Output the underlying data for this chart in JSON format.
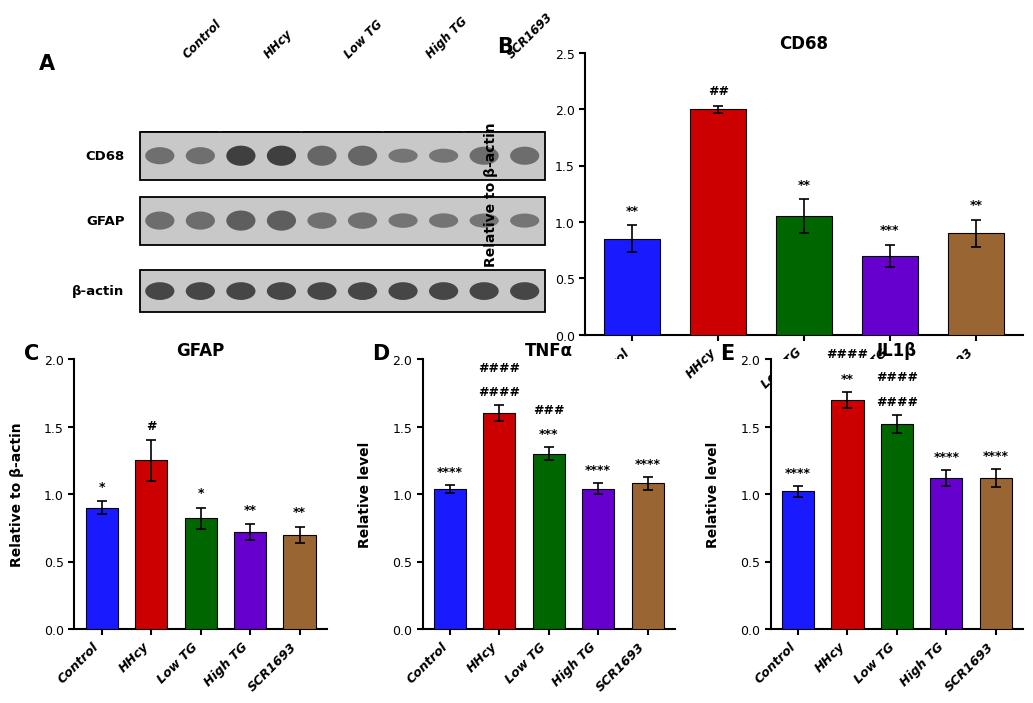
{
  "categories": [
    "Control",
    "HHcy",
    "Low TG",
    "High TG",
    "SCR1693"
  ],
  "bar_colors": [
    "#1a1aff",
    "#cc0000",
    "#006600",
    "#6600cc",
    "#996633"
  ],
  "panel_B": {
    "title": "CD68",
    "ylabel": "Relative to β-actin",
    "ylim": [
      0,
      2.5
    ],
    "yticks": [
      0.0,
      0.5,
      1.0,
      1.5,
      2.0,
      2.5
    ],
    "values": [
      0.85,
      2.0,
      1.05,
      0.7,
      0.9
    ],
    "errors": [
      0.12,
      0.03,
      0.15,
      0.1,
      0.12
    ],
    "annotations": [
      "**",
      "##",
      "**",
      "***",
      "**"
    ]
  },
  "panel_C": {
    "title": "GFAP",
    "ylabel": "Relative to β-actin",
    "ylim": [
      0,
      2.0
    ],
    "yticks": [
      0.0,
      0.5,
      1.0,
      1.5,
      2.0
    ],
    "values": [
      0.9,
      1.25,
      0.82,
      0.72,
      0.7
    ],
    "errors": [
      0.05,
      0.15,
      0.08,
      0.06,
      0.06
    ],
    "annotations": [
      "*",
      "#",
      "*",
      "**",
      "**"
    ]
  },
  "panel_D": {
    "title": "TNFα",
    "ylabel": "Relative level",
    "ylim": [
      0,
      2.0
    ],
    "yticks": [
      0.0,
      0.5,
      1.0,
      1.5,
      2.0
    ],
    "values": [
      1.04,
      1.6,
      1.3,
      1.04,
      1.08
    ],
    "errors": [
      0.03,
      0.06,
      0.05,
      0.04,
      0.05
    ],
    "ann_above": [
      "****",
      "####",
      "***,###",
      "****",
      "****"
    ],
    "ann_above2": [
      "",
      "####",
      "###",
      "",
      ""
    ]
  },
  "panel_E": {
    "title": "IL1β",
    "ylabel": "Relative level",
    "ylim": [
      0,
      2.0
    ],
    "yticks": [
      0.0,
      0.5,
      1.0,
      1.5,
      2.0
    ],
    "values": [
      1.02,
      1.7,
      1.52,
      1.12,
      1.12
    ],
    "errors": [
      0.04,
      0.06,
      0.07,
      0.06,
      0.07
    ],
    "ann_above": [
      "****",
      "**,####",
      "####",
      "****",
      "****"
    ],
    "ann_above2": [
      "",
      "####",
      "####",
      "",
      ""
    ]
  },
  "background_color": "#ffffff",
  "label_fontsize": 10,
  "title_fontsize": 12,
  "tick_fontsize": 9,
  "annotation_fontsize": 9,
  "blot_group_labels": [
    "Control",
    "HHcy",
    "Low TG",
    "High TG",
    "SCR1693"
  ],
  "blot_row_labels": [
    "CD68",
    "GFAP",
    "β-actin"
  ],
  "blot_cd68_vals": [
    0.85,
    0.85,
    2.0,
    2.0,
    1.05,
    1.05,
    0.7,
    0.7,
    0.9,
    0.9
  ],
  "blot_gfap_vals": [
    0.9,
    0.9,
    1.25,
    1.25,
    0.82,
    0.82,
    0.72,
    0.72,
    0.7,
    0.7
  ],
  "blot_bactin_vals": [
    1.0,
    1.0,
    1.0,
    1.0,
    1.0,
    1.0,
    1.0,
    1.0,
    1.0,
    1.0
  ]
}
